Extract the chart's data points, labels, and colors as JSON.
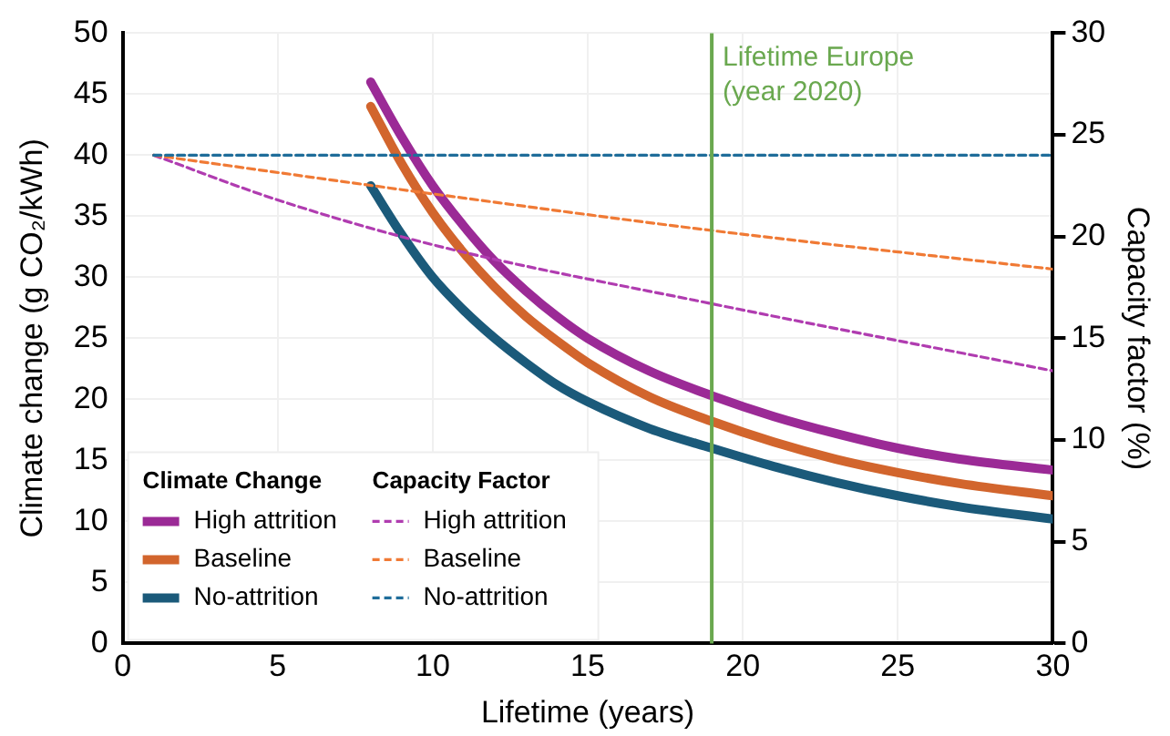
{
  "chart_data": {
    "type": "line",
    "xlabel": "Lifetime (years)",
    "ylabel": "Climate change (g CO₂/kWh)",
    "y2label": "Capacity factor (%)",
    "legend_title": [
      "Climate Change",
      "Capacity Factor"
    ],
    "xlim": [
      0,
      30
    ],
    "xticks": [
      0,
      5,
      10,
      15,
      20,
      25,
      30
    ],
    "ylim": [
      0,
      50
    ],
    "yticks": [
      0,
      5,
      10,
      15,
      20,
      25,
      30,
      35,
      40,
      45,
      50
    ],
    "y2lim": [
      0,
      30
    ],
    "y2ticks": [
      0,
      5,
      10,
      15,
      20,
      25,
      30
    ],
    "grid": true,
    "legend": "bottom left",
    "marker": "none",
    "ref_lines": [
      {
        "axis": "x",
        "value": 19,
        "label": "Lifetime Europe (year 2020)",
        "color": "#6aa84f"
      }
    ],
    "series": [
      {
        "name": "High attrition",
        "color": "#9b2a96",
        "line_style": "solid",
        "x": [
          8,
          9,
          10,
          11,
          12,
          13,
          14,
          15,
          17,
          19,
          21,
          23,
          25,
          27,
          30
        ],
        "values": [
          46,
          41.5,
          37.5,
          34.2,
          31.3,
          28.9,
          26.8,
          25,
          22.3,
          20.3,
          18.6,
          17.2,
          16,
          15.1,
          14.2
        ]
      },
      {
        "name": "Baseline",
        "color": "#d2652d",
        "line_style": "solid",
        "x": [
          8,
          9,
          10,
          11,
          12,
          13,
          14,
          15,
          17,
          19,
          21,
          23,
          25,
          27,
          30
        ],
        "values": [
          44,
          39.3,
          35.3,
          32,
          29.2,
          26.8,
          24.8,
          23,
          20.2,
          18.2,
          16.5,
          15.1,
          14,
          13.1,
          12.1
        ]
      },
      {
        "name": "No-attrition",
        "color": "#1b5a7a",
        "line_style": "solid",
        "x": [
          8,
          9,
          10,
          11,
          12,
          13,
          14,
          15,
          17,
          19,
          21,
          23,
          25,
          27,
          30
        ],
        "values": [
          37.5,
          33.5,
          30,
          27.3,
          25,
          23,
          21.2,
          19.8,
          17.6,
          16,
          14.5,
          13.2,
          12.1,
          11.2,
          10.2
        ]
      },
      {
        "name": "High attrition",
        "color": "#b03cb0",
        "line_style": "dashed",
        "axis": "y2",
        "x": [
          1,
          5,
          10,
          19,
          30
        ],
        "values": [
          24,
          21.8,
          19.6,
          16.7,
          13.4
        ]
      },
      {
        "name": "Baseline",
        "color": "#f07a35",
        "line_style": "dashed",
        "axis": "y2",
        "x": [
          1,
          10,
          19,
          30
        ],
        "values": [
          24,
          22.1,
          20.3,
          18.4
        ]
      },
      {
        "name": "No-attrition",
        "color": "#1f6d9a",
        "line_style": "dashed",
        "axis": "y2",
        "x": [
          1,
          30
        ],
        "values": [
          24,
          24
        ]
      }
    ]
  }
}
